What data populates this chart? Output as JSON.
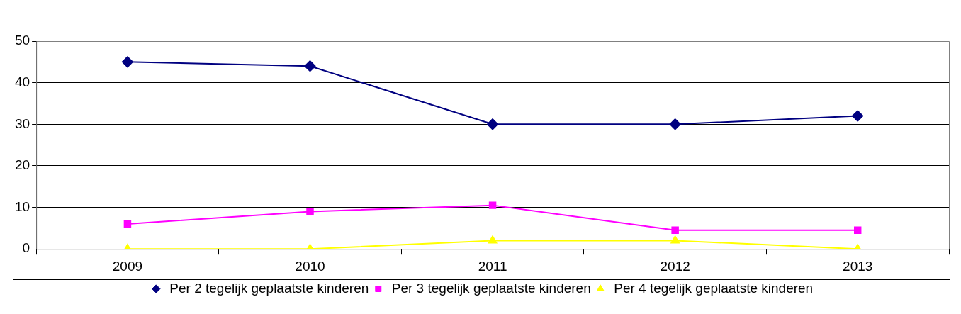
{
  "chart_data": {
    "type": "line",
    "categories": [
      "2009",
      "2010",
      "2011",
      "2012",
      "2013"
    ],
    "series": [
      {
        "name": "Per 2 tegelijk geplaatste kinderen",
        "color": "#000080",
        "marker": "diamond",
        "values": [
          45,
          44,
          30,
          30,
          32
        ]
      },
      {
        "name": "Per 3 tegelijk geplaatste kinderen",
        "color": "#ff00ff",
        "marker": "square",
        "values": [
          6,
          9,
          10.5,
          4.5,
          4.5
        ]
      },
      {
        "name": "Per 4 tegelijk geplaatste kinderen",
        "color": "#ffff00",
        "marker": "triangle",
        "values": [
          0,
          0,
          2,
          2,
          0
        ]
      }
    ],
    "ylim": [
      0,
      50
    ],
    "yticks": [
      0,
      10,
      20,
      30,
      40,
      50
    ],
    "grid": "y",
    "legend": "bottom"
  }
}
